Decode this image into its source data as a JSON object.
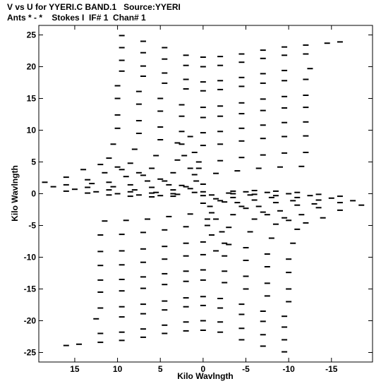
{
  "header": {
    "line1": "V vs U for YYERI.C BAND.1   Source:YYERI",
    "line2": "Ants * - *    Stokes I  IF# 1  Chan# 1"
  },
  "chart_data": {
    "type": "scatter",
    "title": "V vs U for YYERI.C BAND.1   Source:YYERI",
    "subtitle": "Ants * - *    Stokes I  IF# 1  Chan# 1",
    "xlabel": "Kilo Wavlngth",
    "ylabel": "Kilo Wavlngth",
    "xlim": [
      19.2,
      -19.8
    ],
    "ylim": [
      -26.5,
      26.5
    ],
    "xticks": [
      15,
      10,
      5,
      0,
      -5,
      -10,
      -15
    ],
    "yticks": [
      25,
      20,
      15,
      10,
      5,
      0,
      -5,
      -10,
      -15,
      -20,
      -25
    ],
    "grid": false,
    "legend": "none",
    "series": [
      {
        "style": "dashes",
        "description_of_pattern": "u-v coverage tracks; each track point mirrored through origin",
        "tracks": [
          {
            "u": [
              9.5,
              7.0,
              4.5,
              2.0,
              0.0,
              -2.0,
              -4.5,
              -7.0,
              -9.5,
              -12.0,
              -14.5,
              -16.0
            ],
            "v": [
              24.9,
              24.0,
              23.0,
              21.8,
              21.5,
              21.6,
              22.0,
              22.6,
              23.1,
              23.4,
              23.7,
              23.9
            ]
          },
          {
            "u": [
              9.5,
              7.0,
              4.5,
              2.0,
              0.0,
              -2.0,
              -4.5,
              -7.0,
              -9.5,
              -12.0
            ],
            "v": [
              23.0,
              22.2,
              21.2,
              20.2,
              20.0,
              20.2,
              20.7,
              21.3,
              21.8,
              22.0
            ]
          },
          {
            "u": [
              9.5,
              7.0,
              4.5,
              2.0,
              0.0,
              -2.0,
              -4.5,
              -7.0,
              -9.5,
              -12.5
            ],
            "v": [
              21.0,
              20.1,
              19.0,
              18.0,
              17.6,
              17.8,
              18.3,
              18.9,
              19.4,
              19.7
            ]
          },
          {
            "u": [
              9.5,
              7.0,
              4.5,
              2.0,
              0.0,
              -2.0,
              -4.5,
              -7.0,
              -9.5,
              -12.0
            ],
            "v": [
              19.3,
              18.5,
              17.4,
              16.5,
              16.2,
              16.4,
              16.9,
              17.4,
              17.8,
              18.0
            ]
          },
          {
            "u": [
              10.0,
              7.5,
              5.0,
              2.5,
              0.0,
              -2.0,
              -4.5,
              -7.0,
              -9.5,
              -12.0
            ],
            "v": [
              17.0,
              16.1,
              15.0,
              14.0,
              13.6,
              13.8,
              14.3,
              14.9,
              15.3,
              15.5
            ]
          },
          {
            "u": [
              10.0,
              7.5,
              5.0,
              2.5,
              0.0,
              -2.0,
              -4.5,
              -7.0,
              -9.5,
              -12.0
            ],
            "v": [
              15.0,
              14.1,
              13.0,
              12.2,
              12.0,
              12.2,
              12.6,
              13.1,
              13.5,
              13.6
            ]
          },
          {
            "u": [
              10.0,
              7.5,
              5.0,
              2.5,
              0.0,
              -2.0,
              -4.5,
              -7.0,
              -9.5,
              -12.0
            ],
            "v": [
              12.4,
              11.5,
              10.5,
              9.8,
              9.6,
              9.8,
              10.3,
              10.8,
              11.2,
              11.3
            ]
          },
          {
            "u": [
              10.0,
              7.5,
              5.0,
              2.5,
              0.0,
              -2.0,
              -4.5,
              -7.0,
              -9.5,
              -12.0
            ],
            "v": [
              10.3,
              9.5,
              8.5,
              7.8,
              7.6,
              7.8,
              8.3,
              8.7,
              9.0,
              9.1
            ]
          },
          {
            "u": [
              10.5,
              8.0,
              5.5,
              3.0,
              0.5,
              -2.0,
              -4.5,
              -7.0,
              -9.5,
              -12.0
            ],
            "v": [
              7.8,
              7.0,
              6.0,
              5.3,
              5.0,
              5.2,
              5.7,
              6.1,
              6.4,
              6.5
            ]
          },
          {
            "u": [
              11.0,
              8.5,
              6.0,
              3.5,
              1.0,
              -1.5,
              -4.0,
              -6.5,
              -9.0,
              -11.5
            ],
            "v": [
              5.6,
              4.8,
              4.0,
              3.3,
              3.0,
              3.2,
              3.6,
              4.0,
              4.2,
              4.3
            ]
          },
          {
            "u": [
              10.0,
              7.5,
              5.0,
              2.5,
              0.0
            ],
            "v": [
              4.2,
              3.3,
              2.3,
              1.3,
              0.3
            ]
          },
          {
            "u": [
              16.0,
              13.5,
              11.0,
              8.5,
              6.0,
              3.5,
              1.0
            ],
            "v": [
              2.6,
              2.2,
              1.8,
              1.4,
              1.0,
              0.6,
              0.2
            ]
          },
          {
            "u": [
              18.5,
              16.0,
              13.5,
              11.0,
              8.5,
              6.0,
              3.5
            ],
            "v": [
              1.8,
              1.4,
              1.0,
              0.6,
              0.3,
              0.1,
              0.0
            ]
          },
          {
            "u": [
              16.0,
              13.5,
              11.0,
              8.5,
              6.0,
              3.5
            ],
            "v": [
              0.4,
              0.1,
              -0.2,
              -0.4,
              -0.5,
              -0.4
            ]
          },
          {
            "u": [
              14.0,
              11.5,
              9.0,
              6.5,
              4.0,
              1.5
            ],
            "v": [
              3.8,
              3.3,
              2.7,
              2.0,
              1.4,
              0.8
            ]
          },
          {
            "u": [
              12.0,
              9.5,
              7.0,
              4.5,
              2.0
            ],
            "v": [
              4.6,
              3.8,
              2.9,
              2.0,
              1.1
            ]
          },
          {
            "u": [
              17.5,
              15.0,
              12.5,
              10.0,
              7.5,
              5.0
            ],
            "v": [
              1.1,
              0.7,
              0.3,
              0.0,
              -0.2,
              -0.3
            ]
          },
          {
            "u": [
              13.0,
              10.5,
              8.0,
              5.5,
              3.0
            ],
            "v": [
              1.6,
              1.1,
              0.6,
              0.2,
              -0.1
            ]
          },
          {
            "u": [
              1.5,
              1.0,
              0.5,
              0.0
            ],
            "v": [
              9.0,
              6.5,
              4.0,
              1.5
            ]
          },
          {
            "u": [
              3.0,
              2.2,
              1.5,
              0.8
            ],
            "v": [
              8.0,
              6.0,
              4.0,
              2.0
            ]
          }
        ]
      }
    ]
  }
}
